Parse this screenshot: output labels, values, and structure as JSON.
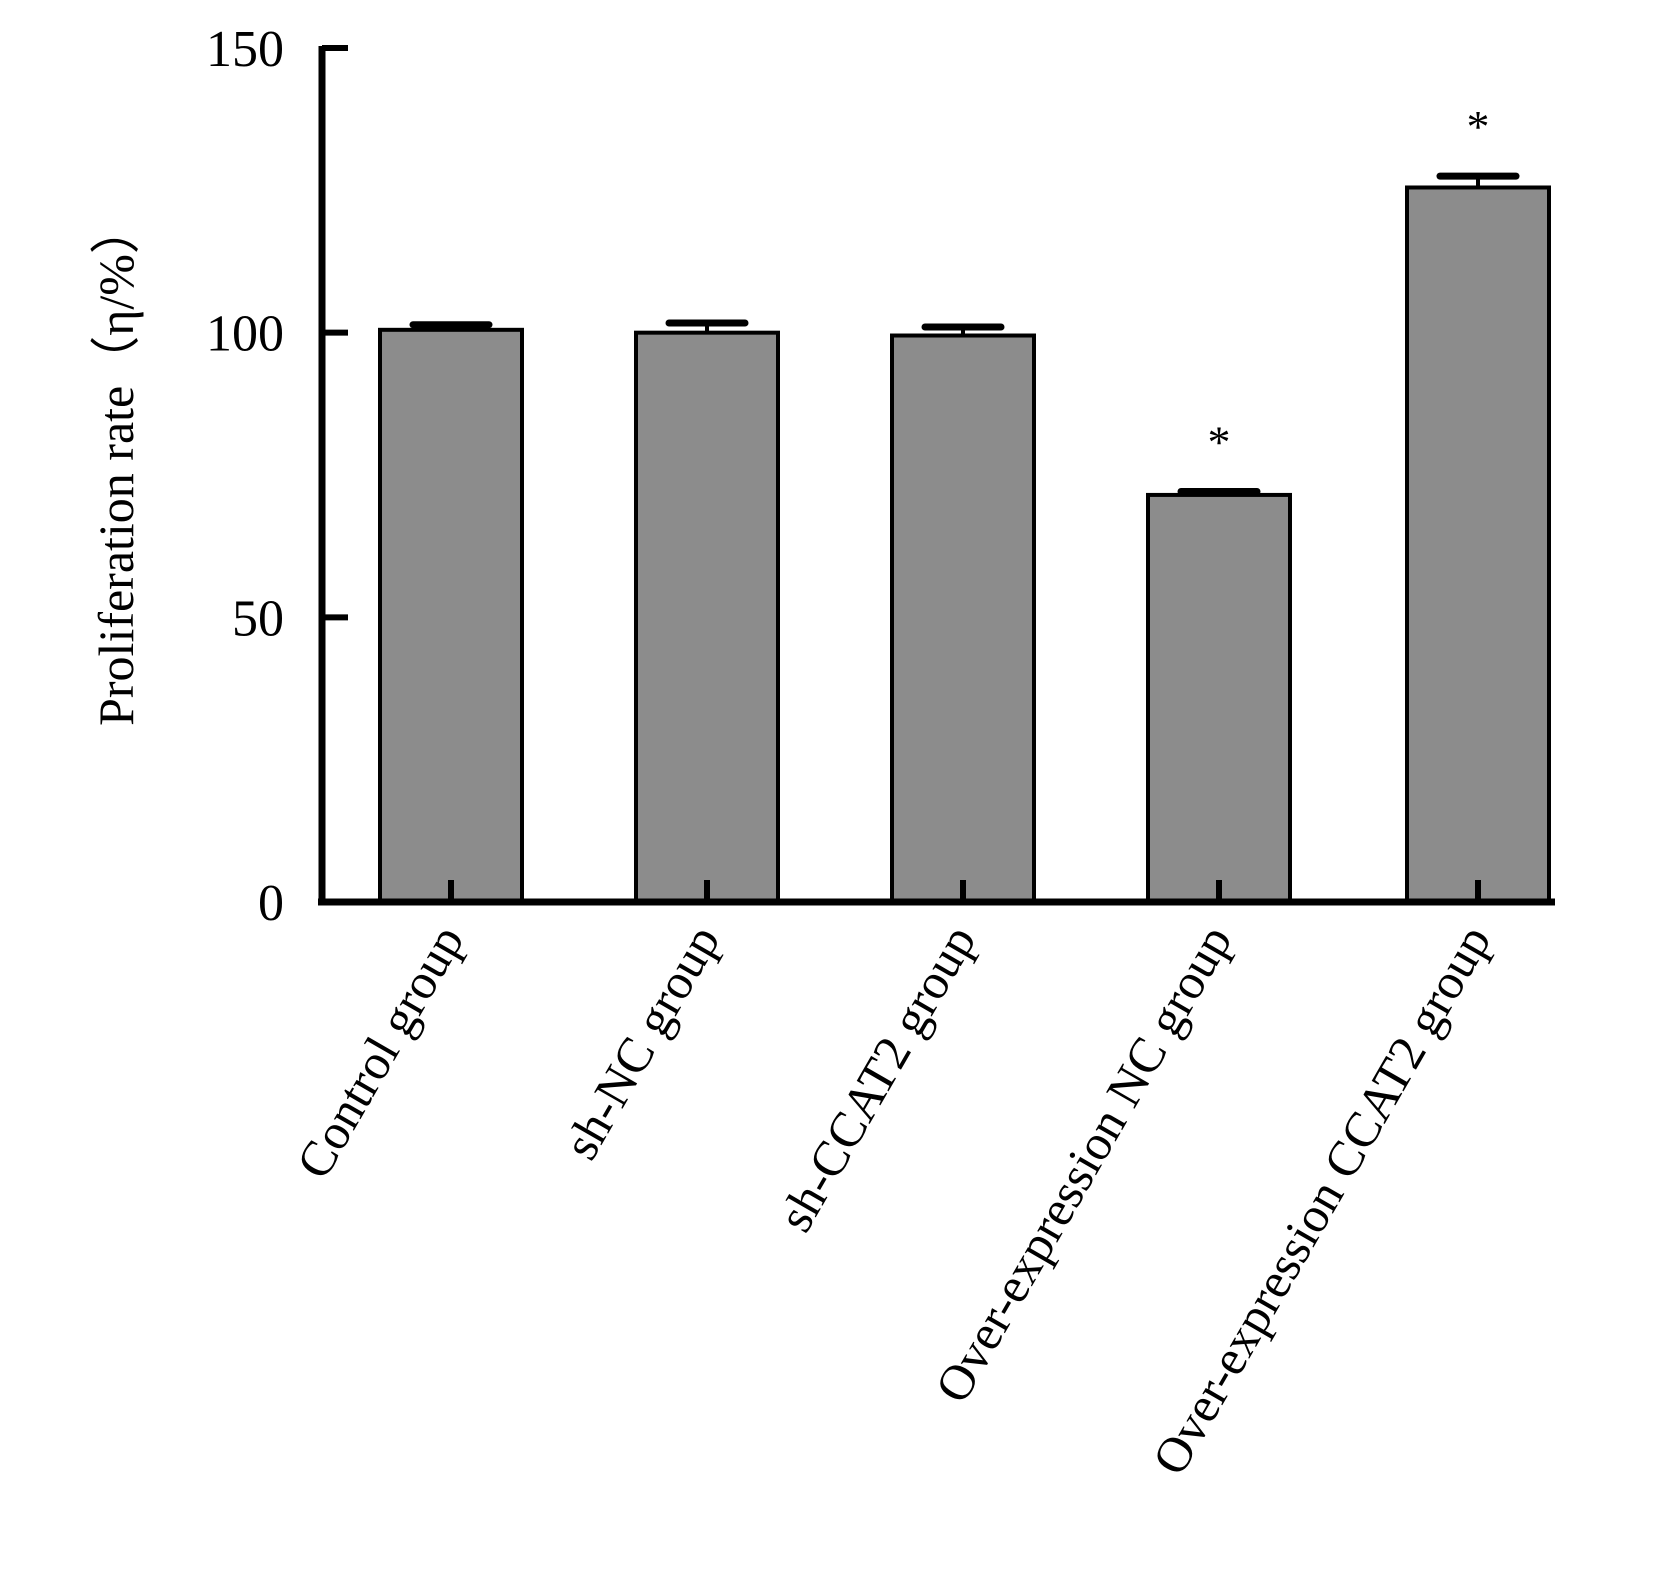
{
  "chart_data": {
    "type": "bar",
    "title": "",
    "xlabel": "",
    "ylabel": "Proliferation rate（η/%）",
    "ylim": [
      0,
      150
    ],
    "yticks": [
      0,
      50,
      100,
      150
    ],
    "yticklabels": [
      "0",
      "50",
      "100",
      "150"
    ],
    "categories": [
      "Control group",
      "sh-NC group",
      "sh-CCAT2  group",
      "Over-expression NC group",
      "Over-expression CCAT2 group"
    ],
    "values": [
      100.5,
      100.0,
      99.5,
      71.5,
      125.5
    ],
    "errors": [
      0.9,
      1.7,
      1.5,
      0.6,
      2.0
    ],
    "annotations": [
      "",
      "",
      "",
      "*",
      "*"
    ],
    "bar_color": "#8c8c8c",
    "edge_color": "#000000",
    "grid": false,
    "legend": "none"
  }
}
